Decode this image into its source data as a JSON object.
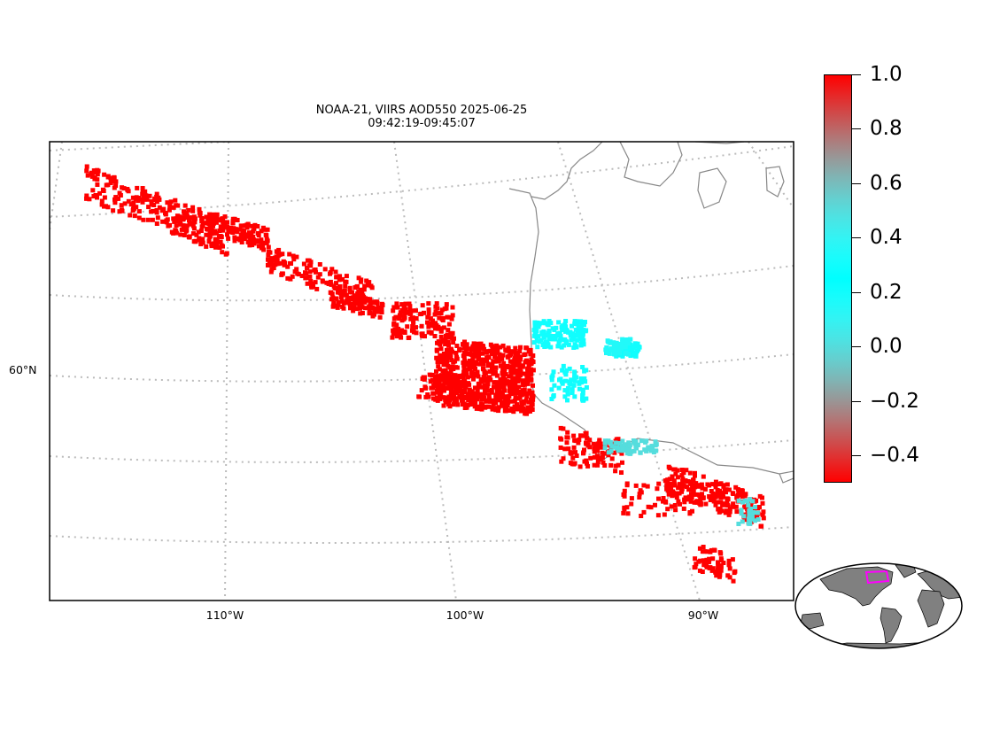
{
  "title": {
    "line1": "NOAA-21, VIIRS AOD550 2025-06-25",
    "line2": "09:42:19-09:45:07"
  },
  "map": {
    "lon_labels": [
      "110°W",
      "100°W",
      "90°W"
    ],
    "lat_labels": [
      "60°N"
    ],
    "graticule": "dotted-gray",
    "coastline_color": "#888888"
  },
  "colorbar": {
    "colormap": "rainbow",
    "range": [
      -0.5,
      1.0
    ],
    "tick_labels": [
      "1.0",
      "0.8",
      "0.6",
      "0.4",
      "0.2",
      "0.0",
      "−0.2",
      "−0.4"
    ],
    "tick_values": [
      1.0,
      0.8,
      0.6,
      0.4,
      0.2,
      0.0,
      -0.2,
      -0.4
    ]
  },
  "inset": {
    "type": "world-globe",
    "land_color": "#808080",
    "highlight_color": "#ff00ff"
  },
  "chart_data": {
    "type": "scatter",
    "title": "NOAA-21, VIIRS AOD550 2025-06-25 09:42:19-09:45:07",
    "xlabel": "",
    "ylabel": "",
    "value_range": [
      -0.5,
      1.0
    ],
    "series": [
      {
        "region": "smoke-plume-northwest",
        "aod": 1.0
      },
      {
        "region": "smoke-core-central",
        "aod": 1.0
      },
      {
        "region": "east-of-hudson-bay-coast",
        "aod": 0.3
      },
      {
        "region": "far-east-cluster",
        "aod": 0.15
      },
      {
        "region": "southeast-band",
        "aod": 1.0
      },
      {
        "region": "southeast-band-edge",
        "aod": 0.5
      }
    ]
  }
}
